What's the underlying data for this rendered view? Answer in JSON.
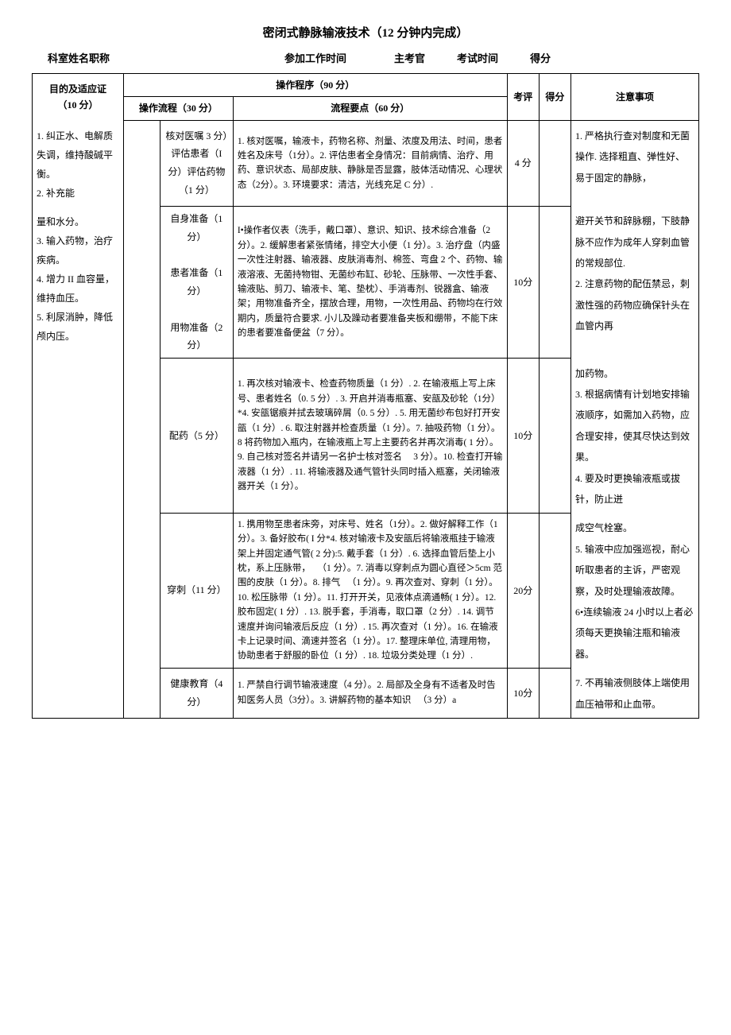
{
  "title": "密闭式静脉输液技术（12 分钟内完成）",
  "header": {
    "dept": "科室姓名职称",
    "worktime": "参加工作时间",
    "examiner": "主考官",
    "examtime": "考试时间",
    "score": "得分"
  },
  "table_headers": {
    "purpose": "目的及适应证",
    "purpose_score": "（10 分）",
    "procedure": "操作程序（90 分）",
    "flow": "操作流程（30 分）",
    "keypoints": "流程要点（60 分）",
    "eval": "考评",
    "score": "得分",
    "notes": "注意事项"
  },
  "purpose": {
    "p1": "1. 纠正水、电解质失调，维持酸碱平衡。",
    "p2": "2. 补充能",
    "p3": "量和水分。",
    "p4": "3. 输入药物，治疗疾病。",
    "p5": "4. 增力 II 血容量，维持血压。",
    "p6": "5. 利尿消肿，降低颅内压。"
  },
  "rows": {
    "r1": {
      "flow": "核对医嘱 3 分）评估患者（I分）评估药物（1 分）",
      "key": "1. 核对医嘱，输液卡，药物名称、剂量、浓度及用法、时间，患者姓名及床号（1分）。2. 评估患者全身情况：目前病情、治疗、用药、意识状态、局部皮肤、静脉是否显露，肢体活动情况、心理状态（2分）。3. 环境要求：清洁，光线充足 C 分）.",
      "score": "4 分"
    },
    "r2": {
      "flow_a": "自身准备（1分）",
      "flow_b": "患者准备（1 分）",
      "flow_c": "用物准备（2 分）",
      "key": "I•操作者仪表（洗手，戴口罩）、意识、知识、技术综合准备（2 分）。2. 缓解患者紧张情绪，排空大小便（1 分）。3. 治疗盘（内盛一次性注射器、输液器、皮肤消毒剂、棉签、弯盘 2 个、药物、输液溶液、无菌持物钳、无菌纱布缸、砂轮、压脉带、一次性手套、输液贴、剪刀、输液卡、笔、垫枕）、手消毒剂、锐器盒、输液架；用物准备齐全，摆放合理，用物，一次性用品、药物均在行效期内，质量符合要求. 小儿及躁动者要准备夹板和绷带，不能下床的患者要准备便盆（7 分）。",
      "score": "10分"
    },
    "r3": {
      "flow": "配药（5 分）",
      "key": "1. 再次核对输液卡、检查药物质量（1 分）. 2. 在输液瓶上写上床号、患者姓名（0. 5 分）. 3. 开启并消毒瓶塞、安瓿及砂轮（1分）*4. 安瓿锯痕并拭去玻璃碎屑（0. 5 分）. 5. 用无菌纱布包好打开安瓿（1 分）. 6. 取注射器并检查质量（1 分）。7. 抽吸药物（1 分）。8 将药物加入瓶内，在输液瓶上写上主要药名并再次消毒( 1 分）。9. 自己核对签名并请另一名护士核对签名\n　3 分）。10. 检查打开输液器（1 分）. 11. 将输液器及通气管针头同时插入瓶塞，关闭输液器开关（1 分）。",
      "score": "10分"
    },
    "r4": {
      "flow": "穿刺（11 分）",
      "key": "1. 携用物至患者床旁，对床号、姓名（1分）。2. 做好解释工作（1 分）。3. 备好胶布( I 分*4. 核对输液卡及安瓿后将输液瓶挂于输液架上并固定通气管( 2 分):5. 戴手套（1 分）. 6. 选择血管后垫上小枕，系上压脉带，\n　（1 分）。7. 消毒以穿刺点为圆心直径＞5cm 范围的皮肤（1 分）。8. 排气\n　（1 分）。9. 再次查对、穿刺（1 分）。10. 松压脉带（1 分）。11. 打开开关，见液体点滴通畅( 1 分）。12. 胶布固定( 1 分）. 13. 脱手套，手消毒，取口罩（2 分）. 14. 调节速度并询问输液后反应（1 分）. 15. 再次查对（1 分）。16. 在输液卡上记录时间、滴速并签名（1 分）。17. 整理床单位, 清理用物，协助患者于舒服的卧位（1 分）. 18. 垃圾分类处理（1 分）.",
      "score": "20分"
    },
    "r5": {
      "flow": "健康教育（4 分）",
      "key": "1. 严禁自行调节输液速度（4 分）。2. 局部及全身有不适者及时告知医务人员（3分）。3. 讲解药物的基本知识\n　（3 分）a",
      "score": "10分"
    }
  },
  "notes": {
    "n1": "1. 严格执行查对制度和无菌操作. 选择粗直、弹性好、易于固定的静脉，",
    "n2": "避开关节和辞脉棚，下肢静脉不应作为成年人穿刺血管的常规部位.",
    "n3": "2. 注意药物的配伍禁忌，刺激性强的药物应确保针头在血管内再",
    "n4": "加药物。",
    "n5": "3. 根据病情有计划地安排输液顺序，如需加入药物，应合理安排，使其尽快达到效果。",
    "n6": "4. 要及时更换输液瓶或拔针，防止迸",
    "n7": "成空气栓塞。",
    "n8": "5. 输液中应加强巡视，耐心听取患者的主诉，严密观察，及时处理输液故障。",
    "n9": "6•连续输液 24 小时以上者必须每天更换输注瓶和输液器。",
    "n10": "7. 不再输液侧肢体上端使用血压袖带和止血带。"
  }
}
